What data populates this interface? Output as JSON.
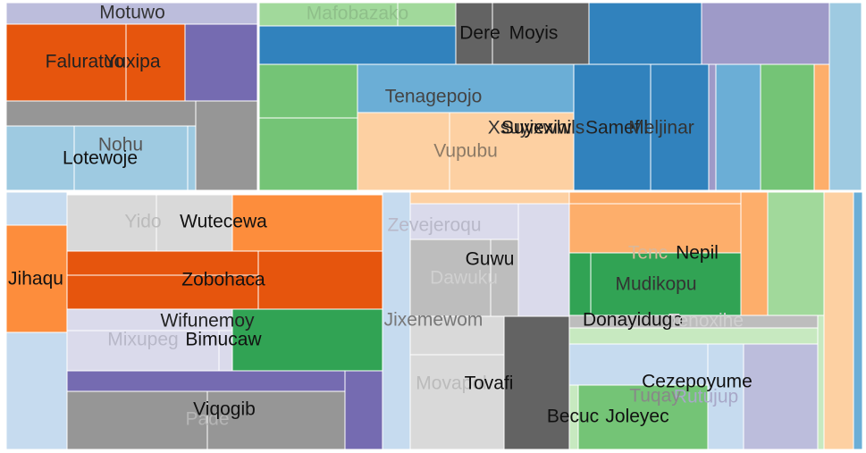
{
  "treemap": {
    "rects": [
      {
        "color": "#bcbddc"
      },
      {
        "color": "#e6550d"
      },
      {
        "color": "#e6550d"
      },
      {
        "color": "#756bb1"
      },
      {
        "color": "#969696"
      },
      {
        "color": "#969696"
      },
      {
        "color": "#9ecae1"
      },
      {
        "color": "#9ecae1"
      },
      {
        "color": "#9ecae1"
      },
      {
        "color": "#a1d99b"
      },
      {
        "color": "#a1d99b"
      },
      {
        "color": "#3182bd"
      },
      {
        "color": "#636363"
      },
      {
        "color": "#636363"
      },
      {
        "color": "#3182bd"
      },
      {
        "color": "#9e9ac8"
      },
      {
        "color": "#9ecae1"
      },
      {
        "color": "#74c476"
      },
      {
        "color": "#74c476"
      },
      {
        "color": "#6baed6"
      },
      {
        "color": "#fdd0a2"
      },
      {
        "color": "#fdd0a2"
      },
      {
        "color": "#3182bd"
      },
      {
        "color": "#3182bd"
      },
      {
        "color": "#9e9ac8"
      },
      {
        "color": "#6baed6"
      },
      {
        "color": "#74c476"
      },
      {
        "color": "#fdae6b"
      },
      {
        "color": "#c6dbef"
      },
      {
        "color": "#fd8d3c"
      },
      {
        "color": "#c6dbef"
      },
      {
        "color": "#d9d9d9"
      },
      {
        "color": "#d9d9d9"
      },
      {
        "color": "#fd8d3c"
      },
      {
        "color": "#e6550d"
      },
      {
        "color": "#e6550d"
      },
      {
        "color": "#e6550d"
      },
      {
        "color": "#dadaeb"
      },
      {
        "color": "#dadaeb"
      },
      {
        "color": "#dadaeb"
      },
      {
        "color": "#31a354"
      },
      {
        "color": "#756bb1"
      },
      {
        "color": "#756bb1"
      },
      {
        "color": "#969696"
      },
      {
        "color": "#969696"
      },
      {
        "color": "#c6dbef"
      },
      {
        "color": "#fdd0a2"
      },
      {
        "color": "#dadaeb"
      },
      {
        "color": "#dadaeb"
      },
      {
        "color": "#bdbdbd"
      },
      {
        "color": "#bdbdbd"
      },
      {
        "color": "#d9d9d9"
      },
      {
        "color": "#d9d9d9"
      },
      {
        "color": "#636363"
      },
      {
        "color": "#fdae6b"
      },
      {
        "color": "#fdae6b"
      },
      {
        "color": "#31a354"
      },
      {
        "color": "#31a354"
      },
      {
        "color": "#fdae6b"
      },
      {
        "color": "#a1d99b"
      },
      {
        "color": "#bdbdbd"
      },
      {
        "color": "#c7e9c0"
      },
      {
        "color": "#c6dbef"
      },
      {
        "color": "#c6dbef"
      },
      {
        "color": "#bcbddc"
      },
      {
        "color": "#c7e9c0"
      },
      {
        "color": "#74c476"
      },
      {
        "color": "#c7e9c0"
      },
      {
        "color": "#fdd0a2"
      },
      {
        "color": "#6baed6"
      }
    ],
    "labels": [
      {
        "text": "Motuwo",
        "color": "#333333"
      },
      {
        "text": "Faluratuo",
        "color": "#222222"
      },
      {
        "text": "Yuxipa",
        "color": "#222222"
      },
      {
        "text": "Nohu",
        "color": "#555555"
      },
      {
        "text": "Lotewoje",
        "color": "#111111"
      },
      {
        "text": "Mafobazako",
        "color": "#8fbf8a"
      },
      {
        "text": "Dere",
        "color": "#111111"
      },
      {
        "text": "Moyis",
        "color": "#111111"
      },
      {
        "text": "Tenagepojo",
        "color": "#444444"
      },
      {
        "text": "Xsuyixwhils",
        "color": "#333333"
      },
      {
        "text": "Suyexiw",
        "color": "#111111"
      },
      {
        "text": "Samefil",
        "color": "#222222"
      },
      {
        "text": "Meljinar",
        "color": "#333333"
      },
      {
        "text": "Vupubu",
        "color": "#8c7a66"
      },
      {
        "text": "Yido",
        "color": "#bbbbbb"
      },
      {
        "text": "Wutecewa",
        "color": "#111111"
      },
      {
        "text": "Jihaqu",
        "color": "#111111"
      },
      {
        "text": "Zobohaca",
        "color": "#111111"
      },
      {
        "text": "Wifunemoy",
        "color": "#222222"
      },
      {
        "text": "Mixupeg",
        "color": "#b8b8c8"
      },
      {
        "text": "Bimucaw",
        "color": "#111111"
      },
      {
        "text": "Pade",
        "color": "#b5b5b5"
      },
      {
        "text": "Viqogib",
        "color": "#111111"
      },
      {
        "text": "Jixemewom",
        "color": "#777777"
      },
      {
        "text": "Zevejeroqu",
        "color": "#b8b8c8"
      },
      {
        "text": "Dawuku",
        "color": "#d0d0d0"
      },
      {
        "text": "Guwu",
        "color": "#111111"
      },
      {
        "text": "Movapol",
        "color": "#bbbbbb"
      },
      {
        "text": "Tovafi",
        "color": "#111111"
      },
      {
        "text": "Tenc",
        "color": "#d9b89a"
      },
      {
        "text": "Nepil",
        "color": "#111111"
      },
      {
        "text": "Mudikopu",
        "color": "#333333"
      },
      {
        "text": "Donayidugo",
        "color": "#111111"
      },
      {
        "text": "Tenoxihe",
        "color": "#d0d0d0"
      },
      {
        "text": "Rutujup",
        "color": "#a8a8c8"
      },
      {
        "text": "Cezepoyume",
        "color": "#111111"
      },
      {
        "text": "Tuqay",
        "color": "#888888"
      },
      {
        "text": "Becuc",
        "color": "#111111"
      },
      {
        "text": "Joleyec",
        "color": "#111111"
      }
    ]
  }
}
